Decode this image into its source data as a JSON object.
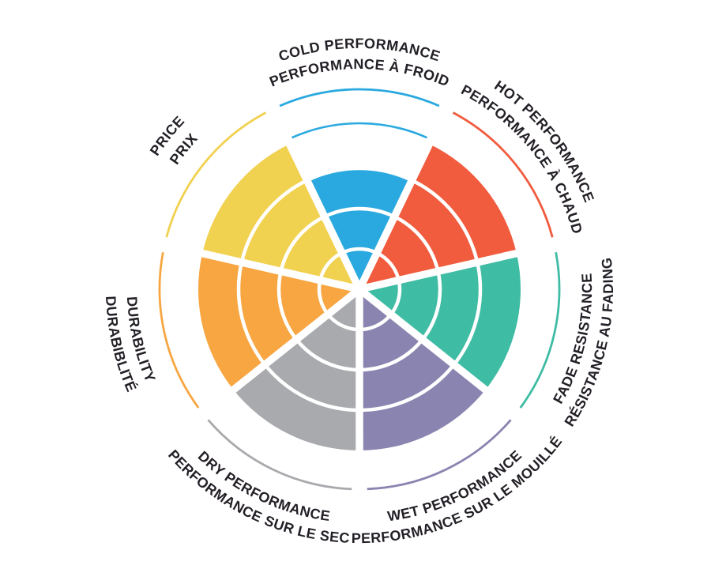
{
  "page": {
    "background": "#ffffff",
    "text_color": "#231F26"
  },
  "chart_data": {
    "type": "polar-wheel",
    "description": "Seven-sector tire performance rating wheel, bilingual English/French labels",
    "max_level": 4,
    "grid_ring_levels": [
      1,
      2,
      3
    ],
    "grid_ring_color": "#ffffff",
    "legend": "none",
    "categories": [
      {
        "id": "cold-performance",
        "outer_label": "COLD PERFORMANCE",
        "inner_label": "PERFORMANCE À FROID",
        "color": "#2AA9E0",
        "value": 3,
        "mid_angle_deg": 90,
        "label_side": "top"
      },
      {
        "id": "hot-performance",
        "outer_label": "HOT PERFORMANCE",
        "inner_label": "PERFORMANCE À CHAUD",
        "color": "#F15B3E",
        "value": 4,
        "mid_angle_deg": 38.57,
        "label_side": "top"
      },
      {
        "id": "fade-resistance",
        "outer_label": "RÉSISTANCE AU FADING",
        "inner_label": "FADE RESISTANCE",
        "color": "#3FBCA4",
        "value": 4,
        "mid_angle_deg": -12.86,
        "label_side": "bottom"
      },
      {
        "id": "wet-performance",
        "outer_label": "PERFORMANCE SUR LE MOUILLÉ",
        "inner_label": "WET PERFORMANCE",
        "color": "#8A84B0",
        "value": 4,
        "mid_angle_deg": -64.29,
        "label_side": "bottom"
      },
      {
        "id": "dry-performance",
        "outer_label": "PERFORMANCE SUR LE SEC",
        "inner_label": "DRY PERFORMANCE",
        "color": "#A9AAAD",
        "value": 4,
        "mid_angle_deg": -115.71,
        "label_side": "bottom"
      },
      {
        "id": "durability",
        "outer_label": "DURABIBLITÉ",
        "inner_label": "DURABILITY",
        "color": "#F7A642",
        "value": 4,
        "mid_angle_deg": -167.14,
        "label_side": "bottom"
      },
      {
        "id": "price",
        "outer_label": "PRICE",
        "inner_label": "PRIX",
        "color": "#F1D150",
        "value": 4,
        "mid_angle_deg": 141.43,
        "label_side": "top"
      }
    ]
  }
}
